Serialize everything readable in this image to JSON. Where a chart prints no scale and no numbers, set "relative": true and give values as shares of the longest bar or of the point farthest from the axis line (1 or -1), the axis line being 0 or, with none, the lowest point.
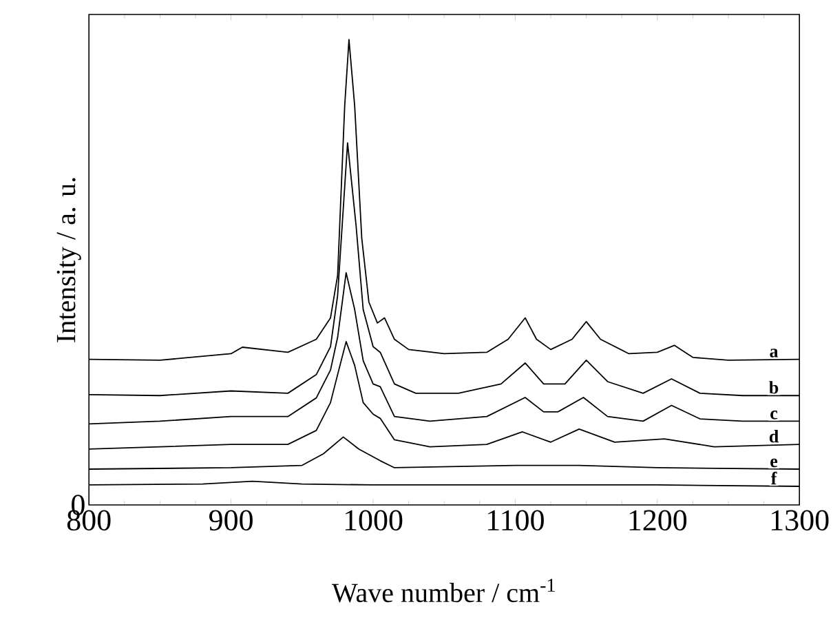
{
  "chart_data": {
    "type": "line",
    "relative": true,
    "xlabel": "Wave number / cm$^{-1}$",
    "ylabel": "Intensity / a. u.",
    "xlim": [
      800,
      1300
    ],
    "xticks": [
      800,
      900,
      1000,
      1100,
      1200,
      1300
    ],
    "annotations": [
      "0"
    ],
    "series": [
      {
        "name": "a",
        "color": "#000000",
        "x": [
          800,
          850,
          900,
          908,
          940,
          960,
          970,
          975,
          980,
          983,
          987,
          992,
          997,
          1003,
          1008,
          1015,
          1025,
          1050,
          1080,
          1095,
          1107,
          1115,
          1125,
          1140,
          1150,
          1160,
          1180,
          1200,
          1212,
          1225,
          1250,
          1300
        ],
        "values": [
          0.313,
          0.311,
          0.325,
          0.339,
          0.328,
          0.356,
          0.402,
          0.493,
          0.858,
          1.0,
          0.858,
          0.573,
          0.436,
          0.391,
          0.402,
          0.356,
          0.334,
          0.325,
          0.328,
          0.356,
          0.402,
          0.356,
          0.334,
          0.356,
          0.394,
          0.356,
          0.325,
          0.328,
          0.343,
          0.317,
          0.311,
          0.313
        ]
      },
      {
        "name": "b",
        "color": "#000000",
        "x": [
          800,
          850,
          900,
          940,
          960,
          970,
          975,
          982,
          988,
          993,
          1000,
          1005,
          1015,
          1030,
          1060,
          1090,
          1107,
          1120,
          1135,
          1150,
          1165,
          1190,
          1210,
          1230,
          1260,
          1300
        ],
        "values": [
          0.237,
          0.235,
          0.245,
          0.24,
          0.28,
          0.34,
          0.45,
          0.778,
          0.6,
          0.42,
          0.34,
          0.328,
          0.26,
          0.24,
          0.24,
          0.26,
          0.305,
          0.26,
          0.26,
          0.311,
          0.265,
          0.24,
          0.271,
          0.24,
          0.235,
          0.235
        ]
      },
      {
        "name": "c",
        "color": "#000000",
        "x": [
          800,
          850,
          900,
          940,
          960,
          970,
          975,
          981,
          987,
          993,
          1000,
          1005,
          1015,
          1040,
          1080,
          1107,
          1120,
          1130,
          1148,
          1165,
          1190,
          1210,
          1230,
          1260,
          1300
        ],
        "values": [
          0.174,
          0.18,
          0.19,
          0.19,
          0.23,
          0.29,
          0.36,
          0.499,
          0.42,
          0.31,
          0.26,
          0.254,
          0.19,
          0.18,
          0.19,
          0.231,
          0.2,
          0.2,
          0.231,
          0.19,
          0.18,
          0.214,
          0.185,
          0.18,
          0.18
        ]
      },
      {
        "name": "d",
        "color": "#000000",
        "x": [
          800,
          900,
          940,
          960,
          970,
          975,
          981,
          987,
          993,
          1000,
          1005,
          1015,
          1040,
          1080,
          1105,
          1125,
          1145,
          1170,
          1205,
          1240,
          1300
        ],
        "values": [
          0.12,
          0.13,
          0.13,
          0.16,
          0.22,
          0.28,
          0.351,
          0.3,
          0.22,
          0.195,
          0.186,
          0.14,
          0.125,
          0.13,
          0.157,
          0.135,
          0.163,
          0.135,
          0.142,
          0.125,
          0.13
        ]
      },
      {
        "name": "e",
        "color": "#000000",
        "x": [
          800,
          900,
          950,
          965,
          979,
          990,
          1005,
          1015,
          1100,
          1145,
          1200,
          1300
        ],
        "values": [
          0.077,
          0.08,
          0.085,
          0.11,
          0.146,
          0.12,
          0.095,
          0.08,
          0.085,
          0.085,
          0.08,
          0.077
        ]
      },
      {
        "name": "f",
        "color": "#000000",
        "x": [
          800,
          880,
          915,
          950,
          1000,
          1100,
          1200,
          1300
        ],
        "values": [
          0.043,
          0.045,
          0.051,
          0.045,
          0.043,
          0.043,
          0.043,
          0.04
        ]
      }
    ]
  }
}
